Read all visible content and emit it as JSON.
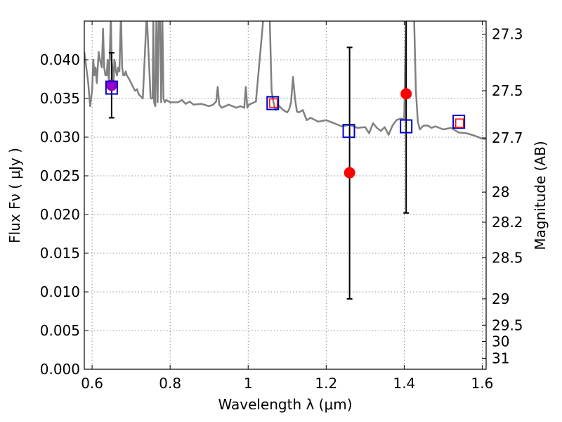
{
  "chart_data": {
    "type": "scatter",
    "xlabel": "Wavelength  λ (μm)",
    "ylabel": "Flux  Fν  ( μJy )",
    "ylabel_right": "Magnitude (AB)",
    "xlim": [
      0.58,
      1.61
    ],
    "ylim": [
      0.0,
      0.045
    ],
    "grid": true,
    "x_ticks": [
      {
        "value": 0.6,
        "label": "0.6"
      },
      {
        "value": 0.8,
        "label": "0.8"
      },
      {
        "value": 1.0,
        "label": "1"
      },
      {
        "value": 1.2,
        "label": "1.2"
      },
      {
        "value": 1.4,
        "label": "1.4"
      },
      {
        "value": 1.6,
        "label": "1.6"
      }
    ],
    "y_ticks": [
      {
        "value": 0.0,
        "label": "0.000"
      },
      {
        "value": 0.005,
        "label": "0.005"
      },
      {
        "value": 0.01,
        "label": "0.010"
      },
      {
        "value": 0.015,
        "label": "0.015"
      },
      {
        "value": 0.02,
        "label": "0.020"
      },
      {
        "value": 0.025,
        "label": "0.025"
      },
      {
        "value": 0.03,
        "label": "0.030"
      },
      {
        "value": 0.035,
        "label": "0.035"
      },
      {
        "value": 0.04,
        "label": "0.040"
      }
    ],
    "mag_ticks": [
      {
        "flux": 0.0433,
        "label": "27.3"
      },
      {
        "flux": 0.036,
        "label": "27.5"
      },
      {
        "flux": 0.0299,
        "label": "27.7"
      },
      {
        "flux": 0.0229,
        "label": "28"
      },
      {
        "flux": 0.019,
        "label": "28.2"
      },
      {
        "flux": 0.0144,
        "label": "28.5"
      },
      {
        "flux": 0.0091,
        "label": "29"
      },
      {
        "flux": 0.0057,
        "label": "29.5"
      },
      {
        "flux": 0.0036,
        "label": "30"
      },
      {
        "flux": 0.0014,
        "label": "31"
      }
    ],
    "colors": {
      "model": "#808080",
      "observed": "#ff0000",
      "synthetic": "#0000cc",
      "overlap": "#9900cc",
      "errorbar": "#000000"
    },
    "model_spectrum": {
      "x": [
        0.58,
        0.59,
        0.595,
        0.6,
        0.603,
        0.606,
        0.609,
        0.612,
        0.617,
        0.62,
        0.625,
        0.628,
        0.631,
        0.634,
        0.637,
        0.64,
        0.643,
        0.646,
        0.648,
        0.65,
        0.652,
        0.655,
        0.657,
        0.659,
        0.661,
        0.664,
        0.667,
        0.67,
        0.674,
        0.677,
        0.68,
        0.683,
        0.686,
        0.689,
        0.695,
        0.7,
        0.71,
        0.715,
        0.72,
        0.73,
        0.74,
        0.75,
        0.755,
        0.757,
        0.759,
        0.762,
        0.765,
        0.768,
        0.771,
        0.774,
        0.777,
        0.78,
        0.783,
        0.786,
        0.79,
        0.8,
        0.82,
        0.83,
        0.84,
        0.85,
        0.86,
        0.88,
        0.9,
        0.91,
        0.918,
        0.922,
        0.926,
        0.932,
        0.95,
        0.97,
        0.98,
        0.99,
        0.994,
        0.998,
        1.002,
        1.02,
        1.04,
        1.055,
        1.06,
        1.065,
        1.07,
        1.08,
        1.09,
        1.1,
        1.105,
        1.11,
        1.115,
        1.12,
        1.125,
        1.13,
        1.14,
        1.15,
        1.16,
        1.18,
        1.2,
        1.22,
        1.24,
        1.26,
        1.28,
        1.3,
        1.31,
        1.32,
        1.33,
        1.34,
        1.35,
        1.36,
        1.37,
        1.38,
        1.39,
        1.4,
        1.405,
        1.41,
        1.415,
        1.42,
        1.425,
        1.43,
        1.435,
        1.44,
        1.45,
        1.46,
        1.47,
        1.48,
        1.5,
        1.52,
        1.54,
        1.56,
        1.58,
        1.6,
        1.61
      ],
      "y": [
        0.041,
        0.037,
        0.034,
        0.036,
        0.04,
        0.038,
        0.039,
        0.037,
        0.041,
        0.04,
        0.039,
        0.044,
        0.039,
        0.038,
        0.038,
        0.04,
        0.037,
        0.042,
        0.046,
        0.04,
        0.039,
        0.037,
        0.04,
        0.0395,
        0.0385,
        0.038,
        0.039,
        0.0385,
        0.046,
        0.039,
        0.038,
        0.038,
        0.0385,
        0.038,
        0.0375,
        0.037,
        0.036,
        0.0362,
        0.0355,
        0.035,
        0.046,
        0.035,
        0.035,
        0.046,
        0.0345,
        0.034,
        0.046,
        0.0345,
        0.046,
        0.046,
        0.0345,
        0.046,
        0.035,
        0.0345,
        0.0348,
        0.0345,
        0.0345,
        0.0348,
        0.0343,
        0.0346,
        0.0342,
        0.0343,
        0.034,
        0.0342,
        0.0346,
        0.0365,
        0.0342,
        0.0338,
        0.0342,
        0.0338,
        0.034,
        0.0338,
        0.0365,
        0.0338,
        0.0342,
        0.0346,
        0.046,
        0.046,
        0.036,
        0.0345,
        0.0335,
        0.034,
        0.0335,
        0.0332,
        0.0336,
        0.0345,
        0.0378,
        0.035,
        0.0333,
        0.0332,
        0.0335,
        0.0322,
        0.0325,
        0.032,
        0.0322,
        0.0318,
        0.0314,
        0.0316,
        0.0312,
        0.0313,
        0.0305,
        0.0318,
        0.0312,
        0.0308,
        0.0313,
        0.0303,
        0.0315,
        0.0322,
        0.0324,
        0.0323,
        0.046,
        0.046,
        0.046,
        0.046,
        0.046,
        0.036,
        0.032,
        0.031,
        0.0315,
        0.0315,
        0.0312,
        0.0314,
        0.031,
        0.0312,
        0.0306,
        0.0305,
        0.0302,
        0.0298,
        0.0298
      ],
      "line_width": 2.5
    },
    "observed": [
      {
        "x": 0.65,
        "y": 0.0367,
        "err_lo": 0.0325,
        "err_hi": 0.0409
      },
      {
        "x": 1.26,
        "y": 0.0254,
        "err_lo": 0.0091,
        "err_hi": 0.0416
      },
      {
        "x": 1.405,
        "y": 0.0356,
        "err_lo": 0.0202,
        "err_hi": 0.046
      }
    ],
    "synthetic": [
      {
        "x": 0.65,
        "y": 0.0364
      },
      {
        "x": 1.063,
        "y": 0.0344
      },
      {
        "x": 1.258,
        "y": 0.0308
      },
      {
        "x": 1.405,
        "y": 0.0314
      },
      {
        "x": 1.54,
        "y": 0.032
      }
    ],
    "small_squares": [
      {
        "x": 1.065,
        "y": 0.0344
      },
      {
        "x": 1.542,
        "y": 0.0318
      }
    ]
  }
}
